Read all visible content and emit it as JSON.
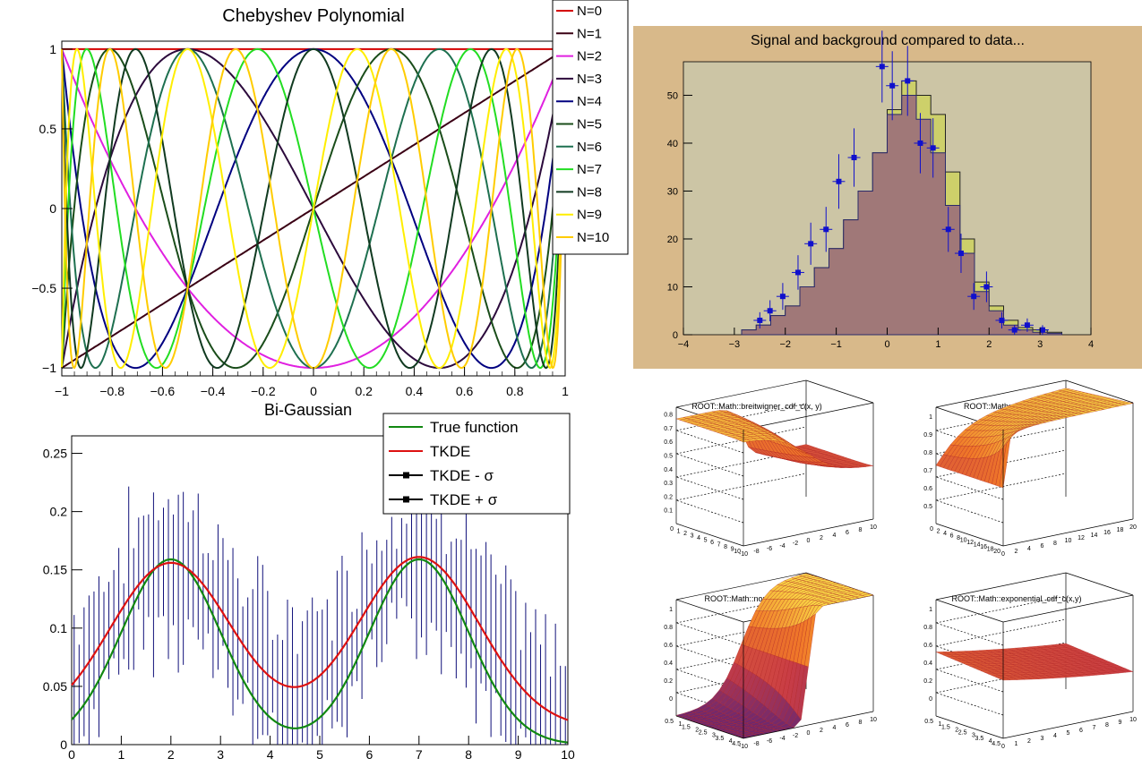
{
  "chart_data": [
    {
      "id": "chebyshev",
      "type": "line",
      "title": "Chebyshev Polynomial",
      "xlim": [
        -1,
        1
      ],
      "ylim": [
        -1.05,
        1.05
      ],
      "x_ticks": [
        "-1",
        "-0.8",
        "-0.6",
        "-0.4",
        "-0.2",
        "0",
        "0.2",
        "0.4",
        "0.6",
        "0.8",
        "1"
      ],
      "y_ticks": [
        "-1",
        "-0.5",
        "0",
        "0.5",
        "1"
      ],
      "legend_position": "top-right",
      "series": [
        {
          "name": "N=0",
          "degree": 0,
          "color": "#d40000"
        },
        {
          "name": "N=1",
          "degree": 1,
          "color": "#3a0014"
        },
        {
          "name": "N=2",
          "degree": 2,
          "color": "#e020e0"
        },
        {
          "name": "N=3",
          "degree": 3,
          "color": "#2c0a3c"
        },
        {
          "name": "N=4",
          "degree": 4,
          "color": "#000080"
        },
        {
          "name": "N=5",
          "degree": 5,
          "color": "#1a4d1a"
        },
        {
          "name": "N=6",
          "degree": 6,
          "color": "#1e7050"
        },
        {
          "name": "N=7",
          "degree": 7,
          "color": "#22dd22"
        },
        {
          "name": "N=8",
          "degree": 8,
          "color": "#103a20"
        },
        {
          "name": "N=9",
          "degree": 9,
          "color": "#ffee00"
        },
        {
          "name": "N=10",
          "degree": 10,
          "color": "#ffcc00"
        }
      ]
    },
    {
      "id": "signal-background",
      "type": "bar",
      "title": "Signal and background compared to data...",
      "xlim": [
        -4,
        4
      ],
      "ylim": [
        0,
        57
      ],
      "x_ticks": [
        "-4",
        "-3",
        "-2",
        "-1",
        "0",
        "1",
        "2",
        "3",
        "4"
      ],
      "y_ticks": [
        "0",
        "10",
        "20",
        "30",
        "40",
        "50"
      ],
      "bin_width": 0.2857,
      "bin_low_edges": [
        -2.857,
        -2.571,
        -2.286,
        -2.0,
        -1.714,
        -1.429,
        -1.143,
        -0.857,
        -0.571,
        -0.286,
        0.0,
        0.286,
        0.571,
        0.857,
        1.143,
        1.429,
        1.714,
        2.0,
        2.286,
        2.571,
        2.857,
        3.143
      ],
      "background_values": [
        1,
        2,
        4,
        6,
        10,
        14,
        18,
        24,
        30,
        38,
        46,
        50,
        45,
        38,
        27,
        17,
        9,
        5,
        2,
        1,
        0.5,
        0.3
      ],
      "total_values": [
        1,
        2,
        4,
        6,
        10,
        14,
        18,
        24,
        30,
        38,
        47,
        53,
        50,
        46,
        34,
        20,
        11,
        6,
        3,
        1.5,
        1,
        0.5
      ],
      "data_points": [
        {
          "x": -2.5,
          "y": 3,
          "err": 1.7
        },
        {
          "x": -2.3,
          "y": 5,
          "err": 2.2
        },
        {
          "x": -2.05,
          "y": 8,
          "err": 2.8
        },
        {
          "x": -1.75,
          "y": 13,
          "err": 3.6
        },
        {
          "x": -1.5,
          "y": 19,
          "err": 4.4
        },
        {
          "x": -1.2,
          "y": 22,
          "err": 4.7
        },
        {
          "x": -0.95,
          "y": 32,
          "err": 5.7
        },
        {
          "x": -0.65,
          "y": 37,
          "err": 6.1
        },
        {
          "x": -0.1,
          "y": 56,
          "err": 7.5
        },
        {
          "x": 0.1,
          "y": 52,
          "err": 7.2
        },
        {
          "x": 0.4,
          "y": 53,
          "err": 7.3
        },
        {
          "x": 0.65,
          "y": 40,
          "err": 6.3
        },
        {
          "x": 0.9,
          "y": 39,
          "err": 6.2
        },
        {
          "x": 1.2,
          "y": 22,
          "err": 4.7
        },
        {
          "x": 1.45,
          "y": 17,
          "err": 4.1
        },
        {
          "x": 1.7,
          "y": 8,
          "err": 2.8
        },
        {
          "x": 1.95,
          "y": 10,
          "err": 3.2
        },
        {
          "x": 2.25,
          "y": 3,
          "err": 1.7
        },
        {
          "x": 2.5,
          "y": 1,
          "err": 1
        },
        {
          "x": 2.75,
          "y": 2,
          "err": 1.4
        },
        {
          "x": 3.05,
          "y": 1,
          "err": 1
        }
      ],
      "colors": {
        "frame": "#d6b98c",
        "plot_bg": "#cdc6a6",
        "background_fill": "#a07878",
        "total_fill": "#cdd06a",
        "data": "#1010cc"
      }
    },
    {
      "id": "bi-gaussian",
      "type": "line",
      "title": "Bi-Gaussian",
      "xlim": [
        0,
        10
      ],
      "ylim": [
        0,
        0.265
      ],
      "x_ticks": [
        "0",
        "1",
        "2",
        "3",
        "4",
        "5",
        "6",
        "7",
        "8",
        "9",
        "10"
      ],
      "y_ticks": [
        "0",
        "0.05",
        "0.1",
        "0.15",
        "0.2",
        "0.25"
      ],
      "legend_position": "top-right",
      "legend": [
        {
          "label": "True function",
          "color": "#118811",
          "style": "line"
        },
        {
          "label": "TKDE",
          "color": "#dd1111",
          "style": "line"
        },
        {
          "label": "TKDE - σ",
          "color": "#000000",
          "style": "marker"
        },
        {
          "label": "TKDE + σ",
          "color": "#000000",
          "style": "marker"
        }
      ],
      "true_function": {
        "mu1": 2,
        "mu2": 7,
        "sigma": 1.0,
        "norm": 0.159,
        "offset": 0.0
      },
      "tkde": {
        "mu1": 2,
        "mu2": 7,
        "sigma": 1.22,
        "peak1": 0.142,
        "peak2": 0.147
      },
      "error_band_color": "#10107a",
      "error_band_bins": 100
    }
  ],
  "surface_panels": [
    {
      "title": "ROOT::Math::breitwigner_cdf_c(x, y)",
      "z_ticks": [
        "0.1",
        "0.2",
        "0.3",
        "0.4",
        "0.5",
        "0.6",
        "0.7",
        "0.8"
      ],
      "x_ticks": [
        "-10",
        "-8",
        "-6",
        "-4",
        "-2",
        "0",
        "2",
        "4",
        "6",
        "8",
        "10"
      ],
      "y_ticks": [
        "0",
        "1",
        "2",
        "3",
        "4",
        "5",
        "6",
        "7",
        "8",
        "9",
        "10"
      ]
    },
    {
      "title": "ROOT::Math::cauchy_cdf(x,y)",
      "z_ticks": [
        "0.5",
        "0.6",
        "0.7",
        "0.8",
        "0.9",
        "1"
      ],
      "x_ticks": [
        "0",
        "2",
        "4",
        "6",
        "8",
        "10",
        "12",
        "14",
        "16",
        "18",
        "20"
      ],
      "y_ticks": [
        "0",
        "2",
        "4",
        "6",
        "8",
        "10",
        "12",
        "14",
        "16",
        "18",
        "20"
      ]
    },
    {
      "title": "ROOT::Math::normal_cdf(x,y)",
      "z_ticks": [
        "0",
        "0.2",
        "0.4",
        "0.6",
        "0.8",
        "1"
      ],
      "x_ticks": [
        "-10",
        "-8",
        "-6",
        "-4",
        "-2",
        "0",
        "2",
        "4",
        "6",
        "8",
        "10"
      ],
      "y_ticks": [
        "0.5",
        "1",
        "1.5",
        "2",
        "2.5",
        "3",
        "3.5",
        "4",
        "4.5"
      ]
    },
    {
      "title": "ROOT::Math::exponential_cdf_c(x,y)",
      "z_ticks": [
        "0",
        "0.2",
        "0.4",
        "0.6",
        "0.8",
        "1"
      ],
      "x_ticks": [
        "0",
        "1",
        "2",
        "3",
        "4",
        "5",
        "6",
        "7",
        "8",
        "9",
        "10"
      ],
      "y_ticks": [
        "0.5",
        "1",
        "1.5",
        "2",
        "2.5",
        "3",
        "3.5",
        "4",
        "4.5"
      ]
    }
  ]
}
